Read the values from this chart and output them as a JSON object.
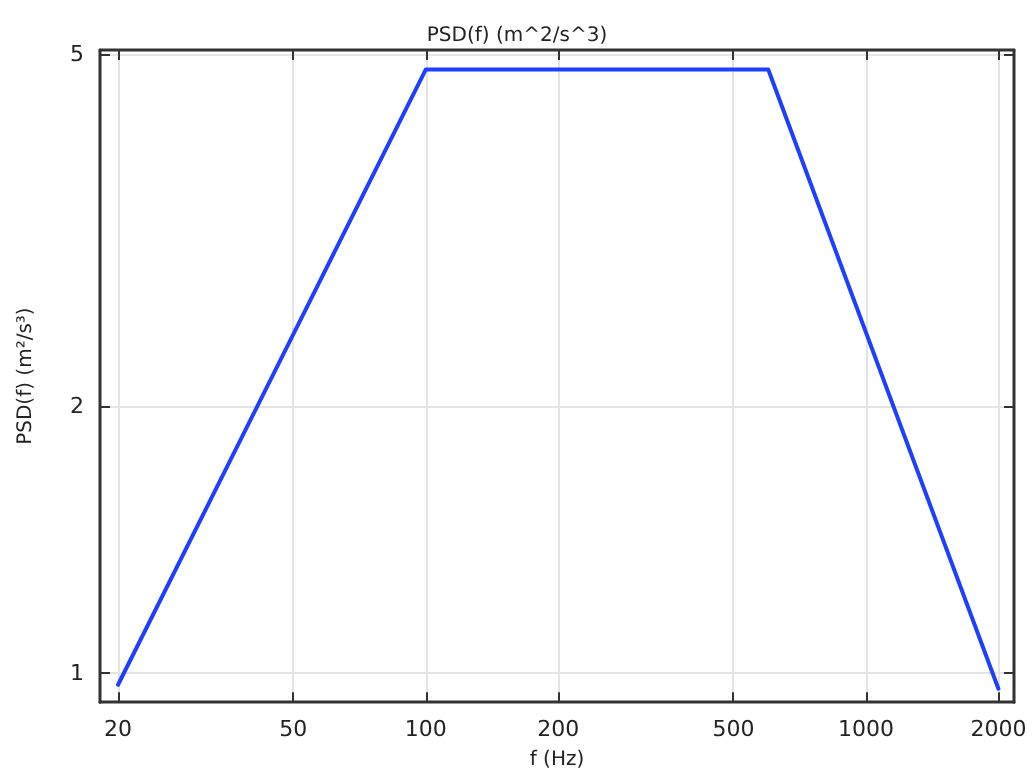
{
  "chart_data": {
    "type": "line",
    "title": "PSD(f) (m^2/s^3)",
    "xlabel": "f (Hz)",
    "ylabel": "PSD(f) (m²/s³)",
    "x": [
      20,
      100,
      600,
      2000
    ],
    "series": [
      {
        "color": "#1f3fff",
        "values": [
          0.97,
          4.8,
          4.8,
          0.96
        ]
      }
    ],
    "log": "xy",
    "xlim": [
      18.2,
      2170
    ],
    "xticks": [
      20,
      50,
      100,
      200,
      500,
      1000,
      2000
    ],
    "ylim": [
      0.927,
      5.05
    ],
    "yticks": [
      1,
      2,
      5
    ],
    "grid": true,
    "marker": "none",
    "line_style": "solid"
  }
}
